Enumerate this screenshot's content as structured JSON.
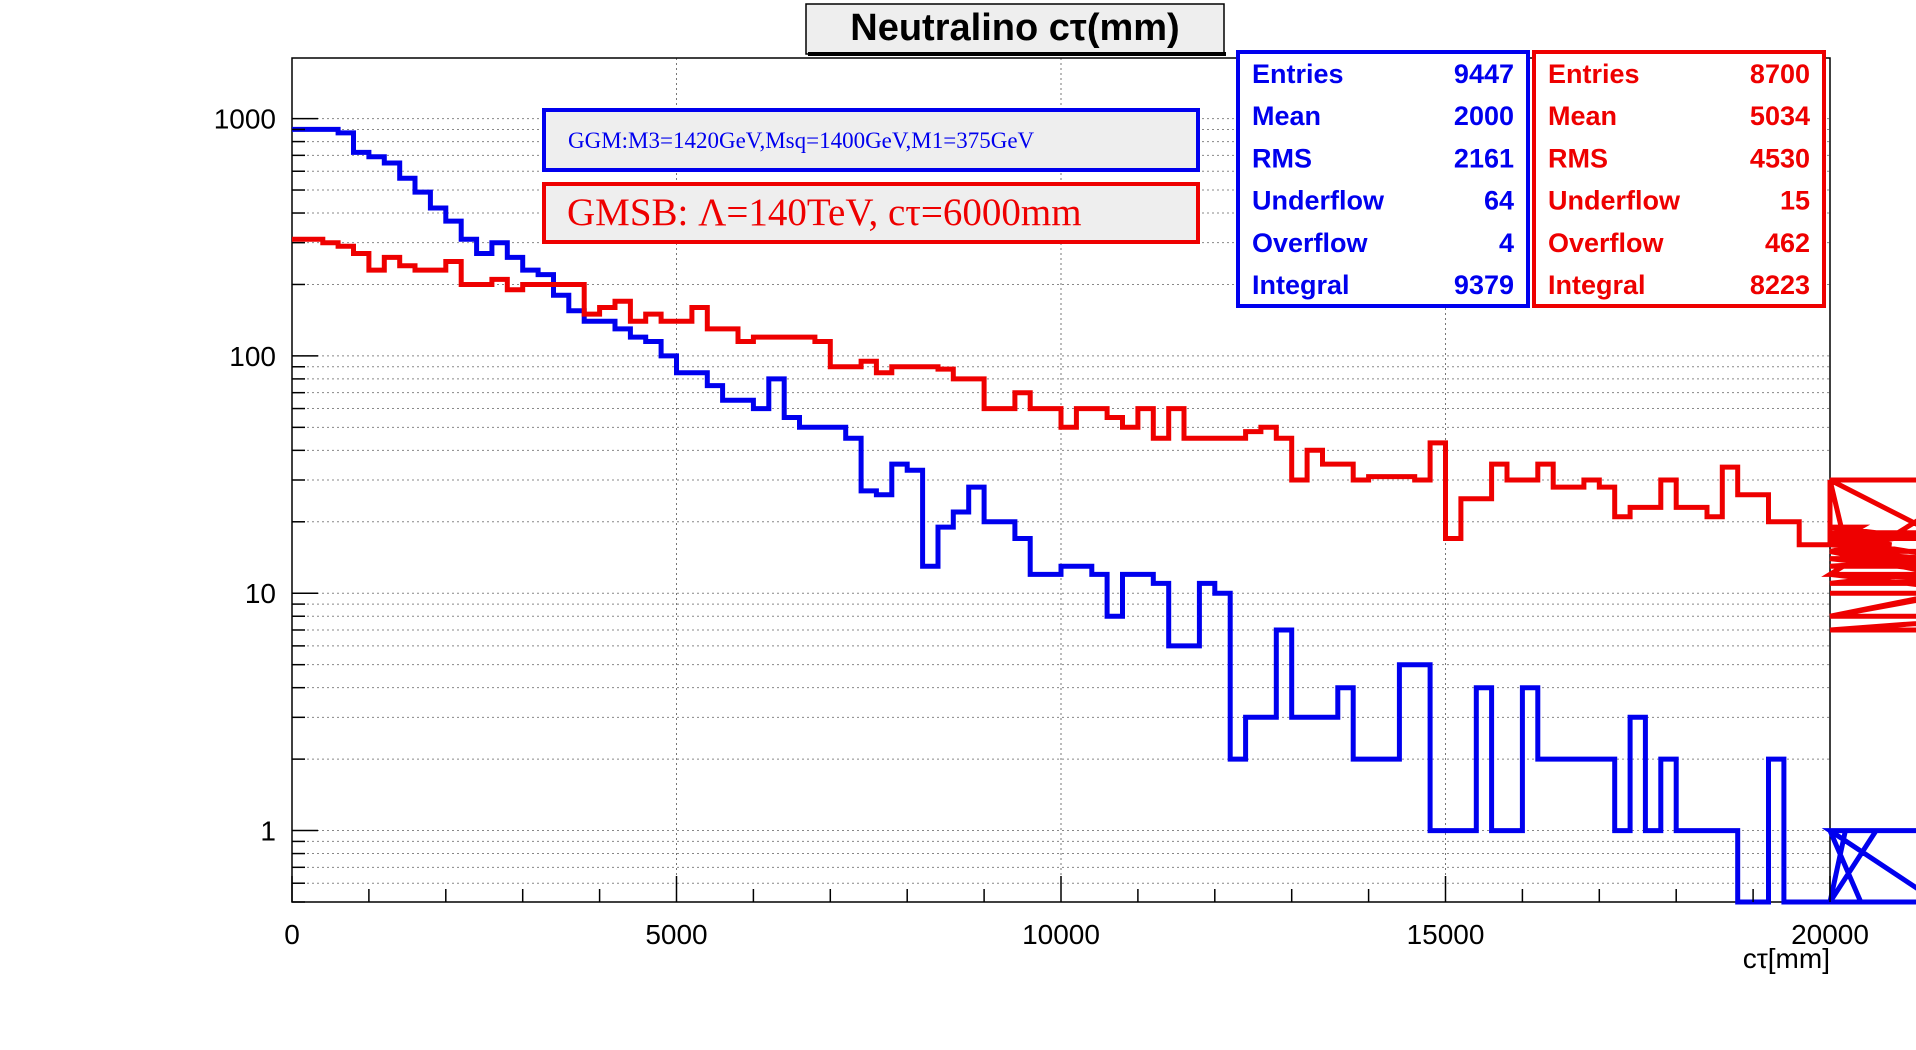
{
  "chart_data": {
    "type": "histogram-step",
    "title": "Neutralino cτ(mm)",
    "xlabel": "cτ[mm]",
    "ylabel": "",
    "xlim": [
      0,
      20000
    ],
    "ylim": [
      0.5,
      1800
    ],
    "yscale": "log",
    "grid": true,
    "x_ticks": [
      0,
      5000,
      10000,
      15000,
      20000
    ],
    "y_ticks": [
      1,
      10,
      100,
      1000
    ],
    "x_tick_labels": [
      "0",
      "5000",
      "10000",
      "15000",
      "20000"
    ],
    "y_tick_labels": [
      "1",
      "10",
      "100",
      "1000"
    ],
    "bin_width": 200,
    "legend": [
      {
        "label": "GGM:M3=1420GeV,Msq=1400GeV,M1=375GeV",
        "color": "#0000ee"
      },
      {
        "label": "GMSB: Λ=140TeV, cτ=6000mm",
        "color": "#ee0000"
      }
    ],
    "series": [
      {
        "color": "#0000ee",
        "values": [
          900,
          900,
          900,
          870,
          720,
          690,
          650,
          560,
          490,
          420,
          370,
          310,
          270,
          300,
          260,
          230,
          220,
          180,
          155,
          140,
          140,
          130,
          120,
          115,
          100,
          85,
          85,
          75,
          65,
          65,
          60,
          80,
          55,
          50,
          50,
          50,
          45,
          27,
          26,
          35,
          33,
          13,
          19,
          22,
          28,
          20,
          20,
          17,
          12,
          12,
          13,
          13,
          12,
          8,
          12,
          12,
          11,
          6,
          6,
          11,
          10,
          2,
          3,
          3,
          7,
          3,
          3,
          3,
          4,
          2,
          2,
          2,
          5,
          5,
          1,
          1,
          1,
          4,
          1,
          1,
          4,
          2,
          2,
          2,
          2,
          2,
          1,
          3,
          1,
          2,
          1,
          1,
          1,
          1,
          0.5,
          0.5,
          2,
          0.5,
          0.5,
          0.5,
          0.5,
          1,
          0.5,
          1,
          1,
          1,
          1,
          0.5,
          0.5,
          0.5
        ]
      },
      {
        "color": "#ee0000",
        "values": [
          310,
          310,
          300,
          290,
          270,
          230,
          260,
          240,
          230,
          230,
          250,
          200,
          200,
          210,
          190,
          200,
          200,
          200,
          200,
          150,
          160,
          170,
          140,
          150,
          140,
          140,
          160,
          130,
          130,
          115,
          120,
          120,
          120,
          120,
          115,
          90,
          90,
          95,
          85,
          90,
          90,
          90,
          88,
          80,
          80,
          60,
          60,
          70,
          60,
          60,
          50,
          60,
          60,
          55,
          50,
          60,
          45,
          60,
          45,
          45,
          45,
          45,
          48,
          50,
          45,
          30,
          40,
          35,
          35,
          30,
          31,
          31,
          31,
          30,
          43,
          17,
          25,
          25,
          35,
          30,
          30,
          35,
          28,
          28,
          30,
          28,
          21,
          23,
          23,
          30,
          23,
          23,
          21,
          34,
          26,
          26,
          20,
          20,
          16,
          16,
          30,
          16,
          19,
          18,
          16,
          15,
          18,
          17,
          14,
          12,
          30,
          13,
          14,
          14,
          13,
          15,
          12,
          11,
          11,
          15,
          8,
          15,
          8,
          15,
          15,
          15,
          15,
          15,
          15,
          11,
          12,
          7,
          10
        ]
      }
    ],
    "stats_boxes": [
      {
        "color": "#0000ee",
        "rows": [
          {
            "label": "Entries",
            "value": "9447"
          },
          {
            "label": "Mean",
            "value": "2000"
          },
          {
            "label": "RMS",
            "value": "2161"
          },
          {
            "label": "Underflow",
            "value": "64"
          },
          {
            "label": "Overflow",
            "value": "4"
          },
          {
            "label": "Integral",
            "value": "9379"
          }
        ]
      },
      {
        "color": "#ee0000",
        "rows": [
          {
            "label": "Entries",
            "value": "8700"
          },
          {
            "label": "Mean",
            "value": "5034"
          },
          {
            "label": "RMS",
            "value": "4530"
          },
          {
            "label": "Underflow",
            "value": "15"
          },
          {
            "label": "Overflow",
            "value": "462"
          },
          {
            "label": "Integral",
            "value": "8223"
          }
        ]
      }
    ]
  }
}
